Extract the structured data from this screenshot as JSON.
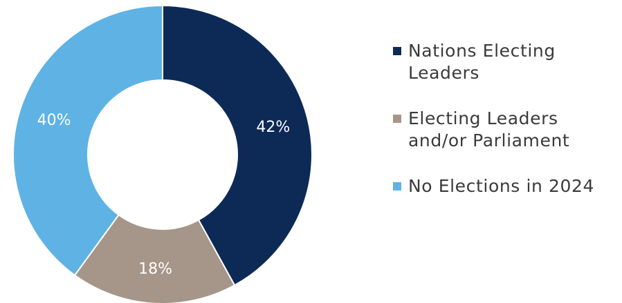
{
  "chart_data": {
    "type": "pie",
    "donut": true,
    "start_angle_deg": 0,
    "direction": "clockwise",
    "slices": [
      {
        "label": "Nations Electing Leaders",
        "value": 42,
        "display": "42%",
        "color": "#0d2a57"
      },
      {
        "label": "Electing Leaders and/or Parliament",
        "value": 18,
        "display": "18%",
        "color": "#a6968a"
      },
      {
        "label": "No Elections in 2024",
        "value": 40,
        "display": "40%",
        "color": "#5eb3e4"
      }
    ],
    "legend": {
      "position": "right",
      "items": [
        {
          "line1": "Nations Electing",
          "line2": "Leaders",
          "color": "#0d2a57"
        },
        {
          "line1": "Electing Leaders",
          "line2": "and/or Parliament",
          "color": "#a6968a"
        },
        {
          "line1": "No Elections in 2024",
          "line2": "",
          "color": "#5eb3e4"
        }
      ]
    }
  }
}
